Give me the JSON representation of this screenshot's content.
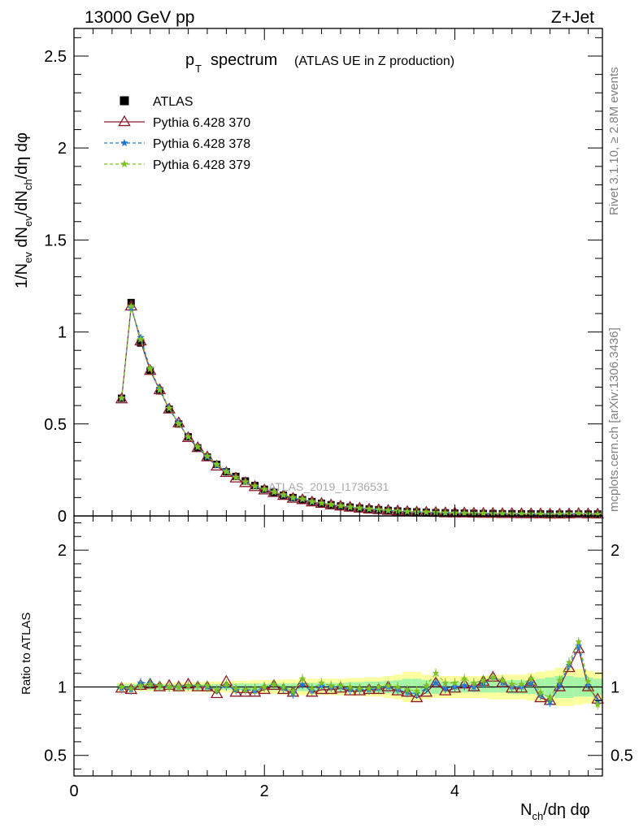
{
  "header": {
    "left": "13000 GeV pp",
    "right": "Z+Jet"
  },
  "side_text": {
    "rivet": "Rivet 3.1.10, ≥ 2.8M events",
    "mcplots": "mcplots.cern.ch [arXiv:1306.3436]"
  },
  "watermark": "ATLAS_2019_I1736531",
  "chart_data": {
    "type": "scatter",
    "title_main": "p",
    "title_sub": "T",
    "title_rest": "spectrum",
    "title_paren": "(ATLAS UE in Z production)",
    "ylabel": "1/N_ev dN_ev/dN_ch/dη dφ",
    "xlabel": "N_ch/dη dφ",
    "xlim": [
      0,
      5.55
    ],
    "ylim": [
      0,
      2.65
    ],
    "x_ticks": [
      "0",
      "2",
      "4"
    ],
    "y_ticks": [
      "0",
      "0.5",
      "1",
      "1.5",
      "2",
      "2.5"
    ],
    "legend_placement": "top-left",
    "x": [
      0.5,
      0.6,
      0.7,
      0.8,
      0.9,
      1.0,
      1.1,
      1.2,
      1.3,
      1.4,
      1.5,
      1.6,
      1.7,
      1.8,
      1.9,
      2.0,
      2.1,
      2.2,
      2.3,
      2.4,
      2.5,
      2.6,
      2.7,
      2.8,
      2.9,
      3.0,
      3.1,
      3.2,
      3.3,
      3.4,
      3.5,
      3.6,
      3.7,
      3.8,
      3.9,
      4.0,
      4.1,
      4.2,
      4.3,
      4.4,
      4.5,
      4.6,
      4.7,
      4.8,
      4.9,
      5.0,
      5.1,
      5.2,
      5.3,
      5.4,
      5.5
    ],
    "series": [
      {
        "name": "ATLAS",
        "color": "#000000",
        "marker": "square",
        "values": [
          0.64,
          1.16,
          0.94,
          0.79,
          0.68,
          0.58,
          0.5,
          0.43,
          0.37,
          0.32,
          0.28,
          0.24,
          0.215,
          0.19,
          0.165,
          0.145,
          0.128,
          0.113,
          0.1,
          0.088,
          0.078,
          0.069,
          0.061,
          0.054,
          0.048,
          0.043,
          0.038,
          0.034,
          0.03,
          0.027,
          0.024,
          0.022,
          0.02,
          0.018,
          0.017,
          0.016,
          0.015,
          0.014,
          0.013,
          0.013,
          0.012,
          0.012,
          0.011,
          0.011,
          0.011,
          0.01,
          0.01,
          0.01,
          0.01,
          0.01,
          0.01
        ],
        "ratio": [
          1.0,
          1.0,
          1.0,
          1.0,
          1.0,
          1.0,
          1.0,
          1.0,
          1.0,
          1.0,
          1.0,
          1.0,
          1.0,
          1.0,
          1.0,
          1.0,
          1.0,
          1.0,
          1.0,
          1.0,
          1.0,
          1.0,
          1.0,
          1.0,
          1.0,
          1.0,
          1.0,
          1.0,
          1.0,
          1.0,
          1.0,
          1.0,
          1.0,
          1.0,
          1.0,
          1.0,
          1.0,
          1.0,
          1.0,
          1.0,
          1.0,
          1.0,
          1.0,
          1.0,
          1.0,
          1.0,
          1.0,
          1.0,
          1.0,
          1.0,
          1.0
        ]
      },
      {
        "name": "Pythia 6.428 370",
        "color": "#8b1a2a",
        "marker": "triangle",
        "values": [
          0.635,
          1.14,
          0.95,
          0.79,
          0.685,
          0.58,
          0.505,
          0.425,
          0.37,
          0.32,
          0.27,
          0.235,
          0.205,
          0.18,
          0.158,
          0.14,
          0.126,
          0.11,
          0.095,
          0.087,
          0.075,
          0.067,
          0.059,
          0.052,
          0.046,
          0.041,
          0.036,
          0.033,
          0.029,
          0.026,
          0.023,
          0.02,
          0.019,
          0.018,
          0.016,
          0.015,
          0.015,
          0.014,
          0.013,
          0.013,
          0.012,
          0.012,
          0.011,
          0.011,
          0.01,
          0.009,
          0.009,
          0.01,
          0.012,
          0.01,
          0.009
        ],
        "ratio": [
          0.99,
          0.98,
          1.01,
          1.02,
          1.0,
          1.01,
          1.0,
          1.02,
          1.0,
          1.0,
          0.95,
          1.04,
          0.96,
          0.96,
          0.96,
          0.98,
          1.01,
          0.98,
          0.96,
          1.03,
          0.96,
          0.98,
          0.98,
          0.99,
          0.97,
          0.97,
          0.98,
          0.98,
          1.0,
          0.97,
          0.96,
          0.92,
          0.96,
          1.03,
          0.97,
          0.99,
          1.02,
          1.0,
          1.04,
          1.07,
          1.03,
          0.99,
          0.99,
          1.04,
          0.92,
          0.9,
          1.0,
          1.14,
          1.28,
          1.0,
          0.91
        ]
      },
      {
        "name": "Pythia 6.428 378",
        "color": "#1f77d4",
        "marker": "star",
        "values": [
          0.64,
          1.13,
          0.97,
          0.8,
          0.69,
          0.585,
          0.505,
          0.43,
          0.375,
          0.32,
          0.275,
          0.245,
          0.21,
          0.185,
          0.16,
          0.145,
          0.13,
          0.112,
          0.096,
          0.09,
          0.076,
          0.07,
          0.061,
          0.054,
          0.047,
          0.042,
          0.037,
          0.033,
          0.03,
          0.026,
          0.023,
          0.021,
          0.02,
          0.018,
          0.016,
          0.016,
          0.015,
          0.014,
          0.014,
          0.013,
          0.012,
          0.012,
          0.011,
          0.011,
          0.01,
          0.009,
          0.01,
          0.011,
          0.013,
          0.01,
          0.009
        ],
        "ratio": [
          0.99,
          0.98,
          1.03,
          1.03,
          1.01,
          1.0,
          1.0,
          1.01,
          1.01,
          1.0,
          0.98,
          1.01,
          0.98,
          0.98,
          0.97,
          1.0,
          1.02,
          0.99,
          0.95,
          1.02,
          0.97,
          1.01,
          1.0,
          1.0,
          0.98,
          0.98,
          0.98,
          0.99,
          1.0,
          0.98,
          0.96,
          0.95,
          0.99,
          1.03,
          0.99,
          1.0,
          1.01,
          1.0,
          1.03,
          1.07,
          1.03,
          1.0,
          1.0,
          1.03,
          0.94,
          0.89,
          1.02,
          1.16,
          1.3,
          1.01,
          0.9
        ]
      },
      {
        "name": "Pythia 6.428 379",
        "color": "#7ec225",
        "marker": "star",
        "values": [
          0.64,
          1.14,
          0.96,
          0.8,
          0.685,
          0.585,
          0.5,
          0.43,
          0.375,
          0.325,
          0.28,
          0.24,
          0.21,
          0.185,
          0.162,
          0.145,
          0.13,
          0.115,
          0.1,
          0.092,
          0.078,
          0.07,
          0.062,
          0.055,
          0.048,
          0.043,
          0.038,
          0.034,
          0.03,
          0.027,
          0.024,
          0.022,
          0.021,
          0.019,
          0.017,
          0.016,
          0.015,
          0.014,
          0.014,
          0.013,
          0.013,
          0.012,
          0.011,
          0.011,
          0.01,
          0.009,
          0.01,
          0.012,
          0.013,
          0.01,
          0.009
        ],
        "ratio": [
          1.0,
          0.99,
          1.01,
          1.02,
          1.01,
          1.0,
          1.0,
          1.01,
          1.01,
          1.01,
          0.98,
          1.02,
          0.99,
          0.98,
          0.99,
          1.0,
          1.02,
          1.0,
          0.97,
          1.06,
          0.99,
          1.03,
          1.01,
          1.01,
          1.0,
          0.99,
          0.99,
          1.0,
          1.01,
          1.0,
          0.98,
          0.97,
          1.01,
          1.1,
          1.03,
          1.03,
          1.06,
          1.03,
          1.05,
          1.07,
          1.05,
          1.02,
          1.02,
          1.06,
          0.96,
          0.92,
          1.05,
          1.18,
          1.33,
          1.04,
          0.87
        ]
      }
    ],
    "ratio_panel": {
      "ylabel": "Ratio to ATLAS",
      "ylim": [
        0.35,
        2.25
      ],
      "y_ticks": [
        "0.5",
        "1",
        "2"
      ],
      "band_inner": [
        0.02,
        0.02,
        0.02,
        0.02,
        0.02,
        0.02,
        0.02,
        0.02,
        0.02,
        0.02,
        0.02,
        0.02,
        0.025,
        0.025,
        0.025,
        0.025,
        0.025,
        0.025,
        0.025,
        0.03,
        0.03,
        0.03,
        0.03,
        0.03,
        0.035,
        0.035,
        0.04,
        0.04,
        0.045,
        0.05,
        0.06,
        0.06,
        0.05,
        0.05,
        0.04,
        0.04,
        0.04,
        0.04,
        0.04,
        0.04,
        0.04,
        0.05,
        0.05,
        0.05,
        0.06,
        0.07,
        0.08,
        0.08,
        0.07,
        0.07,
        0.06
      ],
      "band_outer": [
        0.03,
        0.03,
        0.03,
        0.03,
        0.03,
        0.03,
        0.035,
        0.035,
        0.035,
        0.04,
        0.04,
        0.04,
        0.045,
        0.045,
        0.05,
        0.05,
        0.05,
        0.055,
        0.055,
        0.06,
        0.06,
        0.06,
        0.06,
        0.06,
        0.065,
        0.065,
        0.07,
        0.07,
        0.08,
        0.09,
        0.11,
        0.11,
        0.09,
        0.08,
        0.08,
        0.08,
        0.08,
        0.08,
        0.08,
        0.09,
        0.09,
        0.09,
        0.09,
        0.1,
        0.11,
        0.12,
        0.14,
        0.14,
        0.13,
        0.12,
        0.11
      ],
      "colors": {
        "inner": "#a6f5a6",
        "outer": "#fbff9e"
      }
    }
  }
}
